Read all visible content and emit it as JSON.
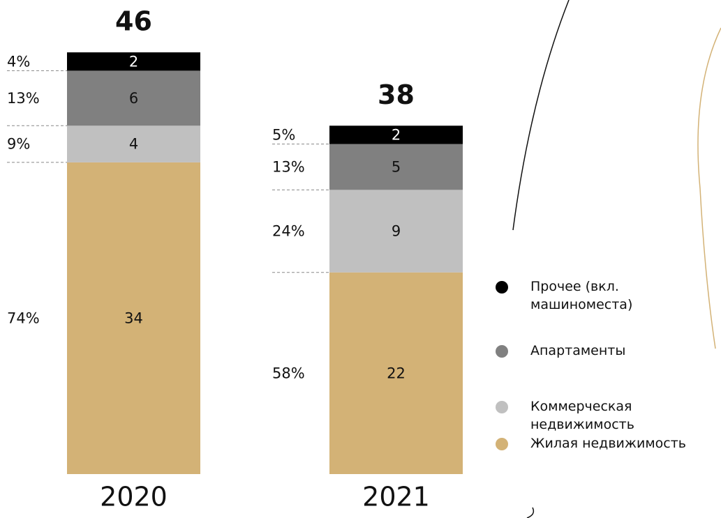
{
  "chart_data": {
    "type": "stacked_bar",
    "categories": [
      "2020",
      "2021"
    ],
    "totals": [
      46,
      38
    ],
    "series": [
      {
        "name": "Жилая недвижимость",
        "color": "#d3b276",
        "values": [
          34,
          22
        ],
        "percent_labels": [
          "74%",
          "58%"
        ]
      },
      {
        "name": "Коммерческая недвижимость",
        "color": "#c0c0c0",
        "values": [
          4,
          9
        ],
        "percent_labels": [
          "9%",
          "24%"
        ]
      },
      {
        "name": "Апартаменты",
        "color": "#808080",
        "values": [
          6,
          5
        ],
        "percent_labels": [
          "13%",
          "13%"
        ]
      },
      {
        "name": "Прочее (вкл. машиноместа)",
        "color": "#000000",
        "values": [
          2,
          2
        ],
        "percent_labels": [
          "4%",
          "5%"
        ]
      }
    ]
  }
}
